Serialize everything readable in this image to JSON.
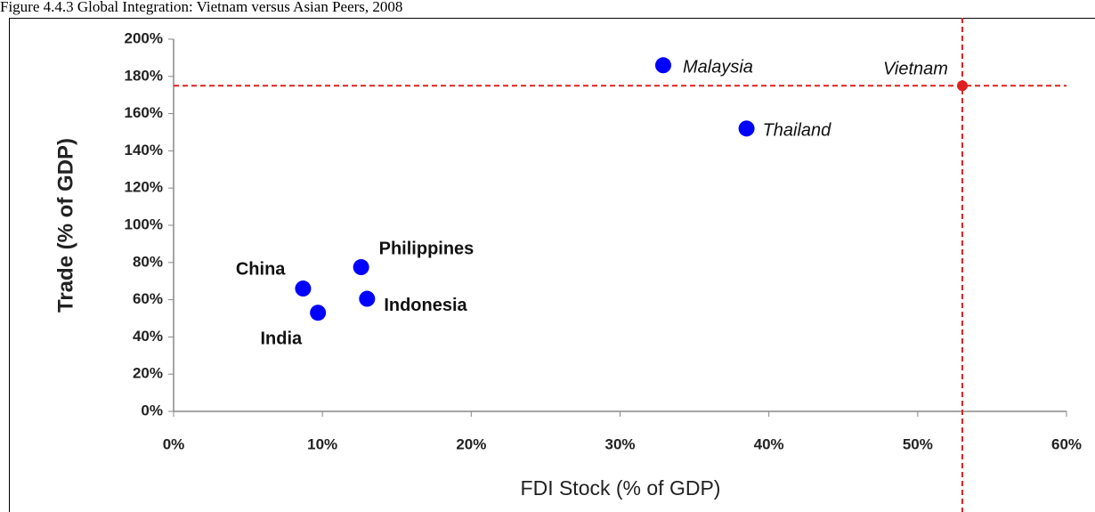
{
  "chart_data": {
    "type": "scatter",
    "title": "Figure 4.4.3  Global Integration: Vietnam versus Asian Peers, 2008",
    "x_label": "FDI Stock (% of GDP)",
    "y_label": "Trade (% of GDP)",
    "xlim": [
      0,
      60
    ],
    "ylim": [
      0,
      200
    ],
    "xticks": [
      {
        "value": 0,
        "label": "0%"
      },
      {
        "value": 10,
        "label": "10%"
      },
      {
        "value": 20,
        "label": "20%"
      },
      {
        "value": 30,
        "label": "30%"
      },
      {
        "value": 40,
        "label": "40%"
      },
      {
        "value": 50,
        "label": "50%"
      },
      {
        "value": 60,
        "label": "60%"
      }
    ],
    "yticks": [
      {
        "value": 0,
        "label": "0%"
      },
      {
        "value": 20,
        "label": "20%"
      },
      {
        "value": 40,
        "label": "40%"
      },
      {
        "value": 60,
        "label": "60%"
      },
      {
        "value": 80,
        "label": "80%"
      },
      {
        "value": 100,
        "label": "100%"
      },
      {
        "value": 120,
        "label": "120%"
      },
      {
        "value": 140,
        "label": "140%"
      },
      {
        "value": 160,
        "label": "160%"
      },
      {
        "value": 180,
        "label": "180%"
      },
      {
        "value": 200,
        "label": "200%"
      }
    ],
    "points": [
      {
        "label": "Malaysia",
        "x": 32.9,
        "y": 186,
        "color": "#0000ff"
      },
      {
        "label": "Thailand",
        "x": 38.5,
        "y": 152,
        "color": "#0000ff"
      },
      {
        "label": "Vietnam",
        "x": 53,
        "y": 175,
        "color": "#e02020",
        "crosshair": true
      },
      {
        "label": "Philippines",
        "x": 12.6,
        "y": 77.5,
        "color": "#0000ff"
      },
      {
        "label": "China",
        "x": 8.7,
        "y": 66,
        "color": "#0000ff"
      },
      {
        "label": "Indonesia",
        "x": 13,
        "y": 60.5,
        "color": "#0000ff"
      },
      {
        "label": "India",
        "x": 9.7,
        "y": 53,
        "color": "#0000ff"
      }
    ]
  }
}
